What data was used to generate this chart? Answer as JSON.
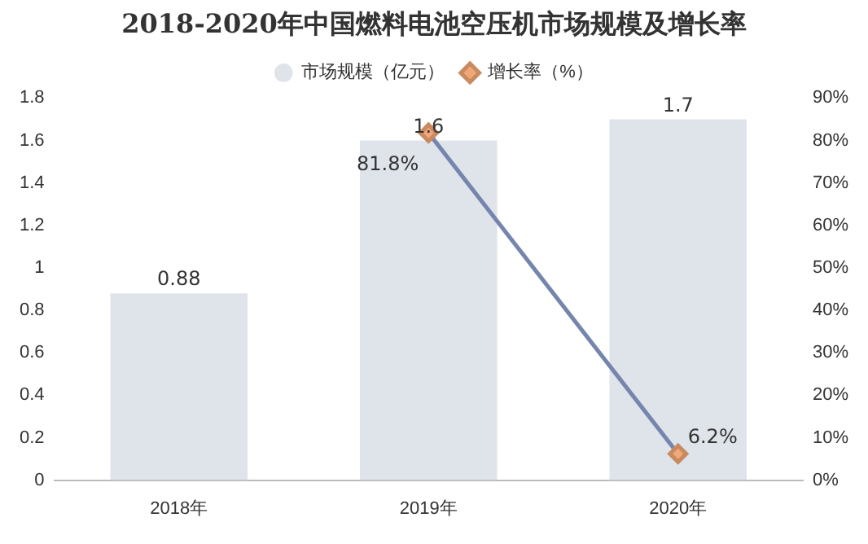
{
  "chart_data": {
    "type": "bar",
    "title": "2018-2020年中国燃料电池空压机市场规模及增长率",
    "categories": [
      "2018年",
      "2019年",
      "2020年"
    ],
    "series": [
      {
        "name": "市场规模（亿元）",
        "color": "#dfe3ea",
        "values": [
          0.88,
          1.6,
          1.7
        ],
        "value_labels": [
          "0.88",
          "1.6",
          "1.7"
        ]
      },
      {
        "name": "增长率（%）",
        "type": "line",
        "axis": "y2",
        "color": "#7585ad",
        "marker": "diamond",
        "values": [
          null,
          81.8,
          6.2
        ],
        "value_labels": [
          null,
          "81.8%",
          "6.2%"
        ]
      }
    ],
    "ylim": [
      0,
      1.8
    ],
    "yticks": [
      0,
      0.2,
      0.4,
      0.6,
      0.8,
      1,
      1.2,
      1.4,
      1.6,
      1.8
    ],
    "y2lim": [
      0,
      90
    ],
    "y2ticks": [
      {
        "value": 0,
        "label": "0%"
      },
      {
        "value": 10,
        "label": "10%"
      },
      {
        "value": 20,
        "label": "20%"
      },
      {
        "value": 30,
        "label": "30%"
      },
      {
        "value": 40,
        "label": "40%"
      },
      {
        "value": 50,
        "label": "50%"
      },
      {
        "value": 60,
        "label": "60%"
      },
      {
        "value": 70,
        "label": "70%"
      },
      {
        "value": 80,
        "label": "80%"
      },
      {
        "value": 90,
        "label": "90%"
      }
    ],
    "grid": false,
    "legend": "top"
  }
}
